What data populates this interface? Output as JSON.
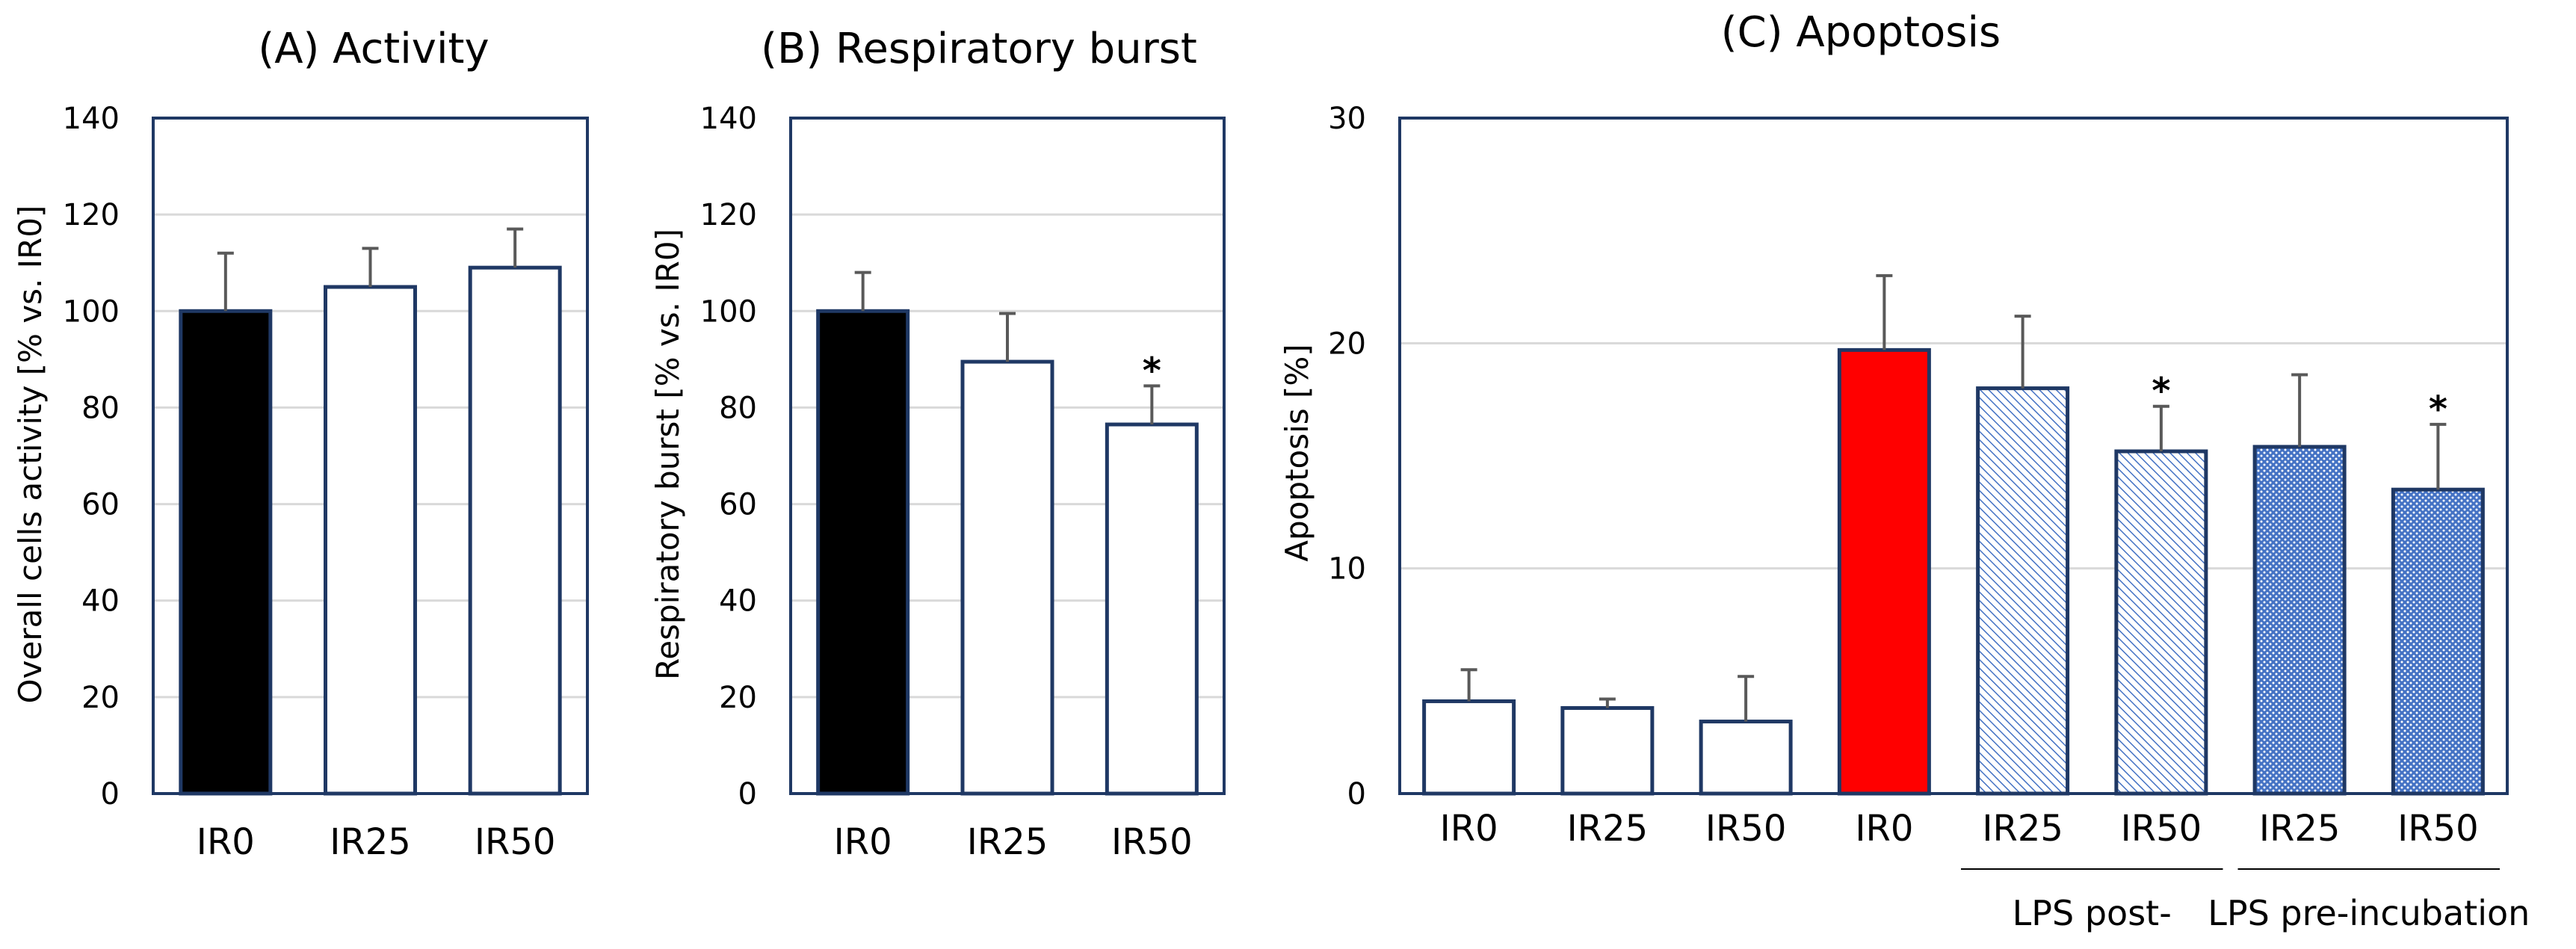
{
  "colors": {
    "axis": "#1f3864",
    "grid": "#d9d9d9",
    "error": "#595959",
    "text": "#000000",
    "black_bar": "#000000",
    "red_bar": "#ff0000",
    "blue_hatch": "#4472c4"
  },
  "chart_data": [
    {
      "id": "A",
      "type": "bar",
      "title": "(A) Activity",
      "ylabel": "Overall cells activity [% vs. IR0]",
      "xlabel": "",
      "ylim": [
        0,
        140
      ],
      "yticks": [
        0,
        20,
        40,
        60,
        80,
        100,
        120,
        140
      ],
      "grid": true,
      "categories": [
        "IR0",
        "IR25",
        "IR50"
      ],
      "values": [
        100,
        105,
        109
      ],
      "errors": [
        12,
        8,
        8
      ],
      "fills": [
        "black",
        "white",
        "white"
      ],
      "significant": [
        false,
        false,
        false
      ]
    },
    {
      "id": "B",
      "type": "bar",
      "title": "(B) Respiratory burst",
      "ylabel": "Respiratory burst [% vs. IR0]",
      "xlabel": "",
      "ylim": [
        0,
        140
      ],
      "yticks": [
        0,
        20,
        40,
        60,
        80,
        100,
        120,
        140
      ],
      "grid": true,
      "categories": [
        "IR0",
        "IR25",
        "IR50"
      ],
      "values": [
        100,
        89.5,
        76.5
      ],
      "errors": [
        8,
        10,
        8
      ],
      "fills": [
        "black",
        "white",
        "white"
      ],
      "significant": [
        false,
        false,
        true
      ]
    },
    {
      "id": "C",
      "type": "bar",
      "title": "(C) Apoptosis",
      "ylabel": "Apoptosis [%]",
      "xlabel": "",
      "ylim": [
        0,
        30
      ],
      "yticks": [
        0,
        10,
        20,
        30
      ],
      "grid": true,
      "categories": [
        "IR0",
        "IR25",
        "IR50",
        "IR0",
        "IR25",
        "IR50",
        "IR25",
        "IR50"
      ],
      "values": [
        4.1,
        3.8,
        3.2,
        19.7,
        18.0,
        15.2,
        15.4,
        13.5
      ],
      "errors": [
        1.4,
        0.4,
        2.0,
        3.3,
        3.2,
        2.0,
        3.2,
        2.9
      ],
      "fills": [
        "white",
        "white",
        "white",
        "red",
        "hatch-fine",
        "hatch-fine",
        "hatch-dense",
        "hatch-dense"
      ],
      "significant": [
        false,
        false,
        false,
        false,
        false,
        true,
        false,
        true
      ],
      "groups": [
        {
          "label": "LPS post-",
          "from": 4,
          "to": 5
        },
        {
          "label": "LPS pre-incubation",
          "from": 6,
          "to": 7
        }
      ]
    }
  ]
}
